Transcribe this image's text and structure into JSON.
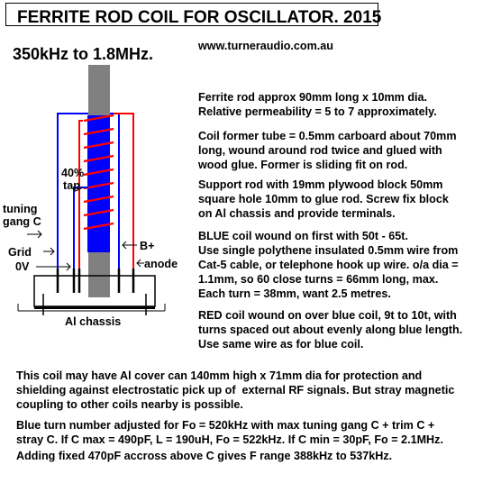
{
  "title": "FERRITE ROD COIL FOR OSCILLATOR. 2015",
  "frequency_range": "350kHz to 1.8MHz.",
  "website": "www.turneraudio.com.au",
  "diagram": {
    "tap_line1": "40%",
    "tap_line2": "tap",
    "tuning_line1": "tuning",
    "tuning_line2": "gang C",
    "grid": "Grid",
    "zero_v": "0V",
    "b_plus": "B+",
    "anode": "anode",
    "chassis": "Al chassis",
    "colors": {
      "blue_wire": "#0000ff",
      "red_wire": "#ff0000",
      "rod": "#808080",
      "blue_coil": "#0000ff"
    }
  },
  "paragraphs": [
    [
      "Ferrite rod approx 90mm long x 10mm dia.",
      "Relative permeability = 5 to 7 approximately."
    ],
    [
      "Coil former tube = 0.5mm carboard about 70mm",
      "long, wound around rod twice and glued with",
      "wood glue. Former is sliding fit on rod."
    ],
    [
      "Support rod with 19mm plywood block 50mm",
      "square hole 10mm to glue rod. Screw fix block",
      "on Al chassis and provide terminals."
    ],
    [
      "BLUE coil wound on first with 50t - 65t.",
      "Use single polythene insulated 0.5mm wire from",
      "Cat-5 cable, or telephone hook up wire. o/a dia =",
      "1.1mm, so 60 close turns = 66mm long, max.",
      "Each turn = 38mm, want 2.5 metres."
    ],
    [
      "RED coil wound on over blue coil, 9t to 10t, with",
      "turns spaced out about evenly along blue length.",
      "Use same wire as for blue coil."
    ]
  ],
  "bottom_paragraphs": [
    [
      "This coil may have Al cover can 140mm high x 71mm dia for protection and",
      "shielding against electrostatic pick up of  external RF signals. But stray magnetic",
      "coupling to other coils nearby is possible."
    ],
    [
      "Blue turn number adjusted for Fo = 520kHz with max tuning gang C + trim C +",
      "stray C. If C max = 490pF, L = 190uH, Fo = 522kHz. If C min = 30pF, Fo = 2.1MHz."
    ],
    [
      "Adding fixed 470pF accross above C gives F range 388kHz to 537kHz."
    ]
  ]
}
